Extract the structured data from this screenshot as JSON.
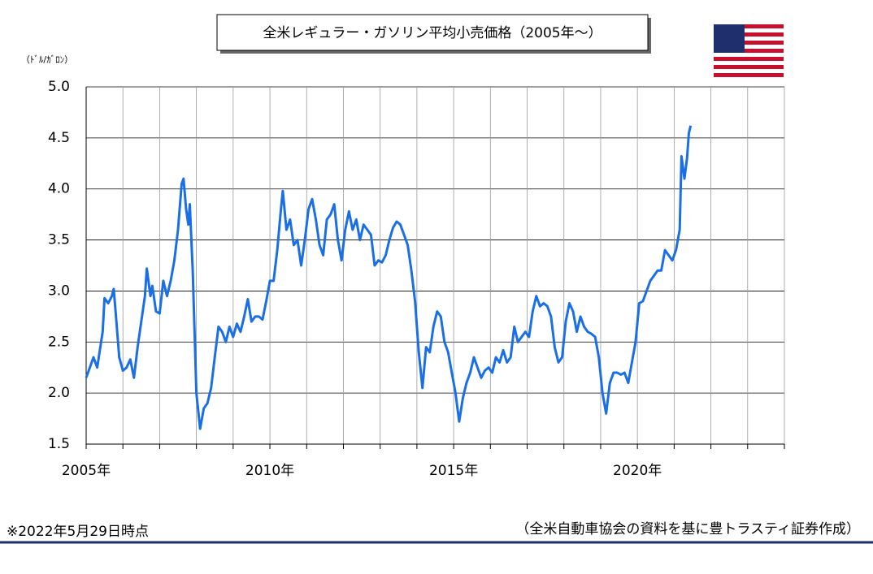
{
  "chart_data": {
    "type": "line",
    "title": "全米レギュラー・ガソリン平均小売価格（2005年～）",
    "y_label": "（ﾄﾞﾙ/ｶﾞﾛﾝ）",
    "note": "※2022年5月29日時点",
    "source": "（全米自動車協会の資料を基に豊トラスティ証券作成）",
    "xlim": [
      2005,
      2024
    ],
    "xticks": [
      {
        "value": 2005,
        "label": "2005年"
      },
      {
        "value": 2010,
        "label": "2010年"
      },
      {
        "value": 2015,
        "label": "2015年"
      },
      {
        "value": 2020,
        "label": "2020年"
      }
    ],
    "xminorticks": [
      2006,
      2007,
      2008,
      2009,
      2011,
      2012,
      2013,
      2014,
      2016,
      2017,
      2018,
      2019,
      2021,
      2022,
      2023,
      2024
    ],
    "ylim": [
      1.5,
      5.0
    ],
    "yticks": [
      1.5,
      {
        "value": 2,
        "label": "2.0"
      },
      2.5,
      {
        "value": 3,
        "label": "3.0"
      },
      3.5,
      {
        "value": 4,
        "label": "4.0"
      },
      4.5,
      {
        "value": 5,
        "label": "5.0"
      }
    ],
    "grid": true,
    "series": [
      {
        "name": "レギュラー・ガソリン",
        "color": "#1a6fe6",
        "x": [
          2005.0,
          2005.1,
          2005.2,
          2005.3,
          2005.45,
          2005.5,
          2005.6,
          2005.7,
          2005.75,
          2005.8,
          2005.9,
          2006.0,
          2006.1,
          2006.2,
          2006.3,
          2006.4,
          2006.5,
          2006.6,
          2006.65,
          2006.75,
          2006.8,
          2006.9,
          2007.0,
          2007.1,
          2007.2,
          2007.3,
          2007.4,
          2007.5,
          2007.6,
          2007.65,
          2007.72,
          2007.78,
          2007.82,
          2007.9,
          2008.0,
          2008.1,
          2008.2,
          2008.3,
          2008.4,
          2008.5,
          2008.6,
          2008.7,
          2008.8,
          2008.9,
          2009.0,
          2009.1,
          2009.2,
          2009.3,
          2009.4,
          2009.5,
          2009.6,
          2009.7,
          2009.8,
          2009.9,
          2010.0,
          2010.1,
          2010.2,
          2010.3,
          2010.35,
          2010.45,
          2010.55,
          2010.65,
          2010.75,
          2010.85,
          2010.95,
          2011.05,
          2011.15,
          2011.25,
          2011.35,
          2011.45,
          2011.55,
          2011.65,
          2011.75,
          2011.85,
          2011.95,
          2012.05,
          2012.15,
          2012.25,
          2012.35,
          2012.45,
          2012.55,
          2012.65,
          2012.75,
          2012.85,
          2012.95,
          2013.05,
          2013.15,
          2013.25,
          2013.35,
          2013.45,
          2013.55,
          2013.65,
          2013.75,
          2013.85,
          2013.95,
          2014.05,
          2014.15,
          2014.25,
          2014.35,
          2014.45,
          2014.55,
          2014.65,
          2014.75,
          2014.85,
          2014.95,
          2015.05,
          2015.15,
          2015.25,
          2015.35,
          2015.45,
          2015.55,
          2015.65,
          2015.75,
          2015.85,
          2015.95,
          2016.05,
          2016.15,
          2016.25,
          2016.35,
          2016.45,
          2016.55,
          2016.65,
          2016.75,
          2016.85,
          2016.95,
          2017.05,
          2017.15,
          2017.25,
          2017.35,
          2017.45,
          2017.55,
          2017.65,
          2017.75,
          2017.85,
          2017.95,
          2018.05,
          2018.15,
          2018.25,
          2018.35,
          2018.45,
          2018.55,
          2018.65,
          2018.75,
          2018.85,
          2018.95,
          2019.05,
          2019.15,
          2019.25,
          2019.35,
          2019.45,
          2019.55,
          2019.65,
          2019.75,
          2019.85,
          2019.95,
          2020.05,
          2020.15,
          2020.25,
          2020.35,
          2020.45,
          2020.55,
          2020.65,
          2020.75,
          2020.85,
          2020.95,
          2021.05,
          2021.15,
          2021.2,
          2021.28,
          2021.35,
          2021.4,
          2021.45
        ],
        "values": [
          2.15,
          2.25,
          2.35,
          2.25,
          2.6,
          2.93,
          2.88,
          2.95,
          3.02,
          2.8,
          2.35,
          2.22,
          2.25,
          2.33,
          2.15,
          2.45,
          2.7,
          2.95,
          3.22,
          2.95,
          3.05,
          2.8,
          2.78,
          3.1,
          2.95,
          3.1,
          3.3,
          3.6,
          4.05,
          4.1,
          3.8,
          3.65,
          3.85,
          3.2,
          2.0,
          1.65,
          1.85,
          1.9,
          2.05,
          2.35,
          2.65,
          2.6,
          2.5,
          2.65,
          2.55,
          2.68,
          2.6,
          2.75,
          2.92,
          2.7,
          2.75,
          2.75,
          2.72,
          2.9,
          3.1,
          3.1,
          3.4,
          3.8,
          3.98,
          3.6,
          3.7,
          3.45,
          3.5,
          3.25,
          3.5,
          3.8,
          3.9,
          3.7,
          3.45,
          3.35,
          3.7,
          3.75,
          3.85,
          3.5,
          3.3,
          3.6,
          3.78,
          3.6,
          3.7,
          3.5,
          3.65,
          3.6,
          3.55,
          3.25,
          3.3,
          3.28,
          3.35,
          3.5,
          3.62,
          3.68,
          3.65,
          3.55,
          3.45,
          3.2,
          2.9,
          2.4,
          2.05,
          2.45,
          2.4,
          2.65,
          2.8,
          2.75,
          2.5,
          2.4,
          2.2,
          2.0,
          1.72,
          1.95,
          2.1,
          2.2,
          2.35,
          2.25,
          2.15,
          2.22,
          2.25,
          2.2,
          2.35,
          2.3,
          2.42,
          2.3,
          2.35,
          2.65,
          2.5,
          2.55,
          2.6,
          2.55,
          2.8,
          2.95,
          2.85,
          2.88,
          2.85,
          2.75,
          2.45,
          2.3,
          2.35,
          2.7,
          2.88,
          2.8,
          2.6,
          2.75,
          2.65,
          2.6,
          2.58,
          2.55,
          2.35,
          2.0,
          1.8,
          2.1,
          2.2,
          2.2,
          2.18,
          2.2,
          2.1,
          2.3,
          2.5,
          2.88,
          2.9,
          3.0,
          3.1,
          3.15,
          3.2,
          3.2,
          3.4,
          3.35,
          3.3,
          3.4,
          3.6,
          4.32,
          4.1,
          4.3,
          4.55,
          4.62
        ]
      }
    ]
  }
}
